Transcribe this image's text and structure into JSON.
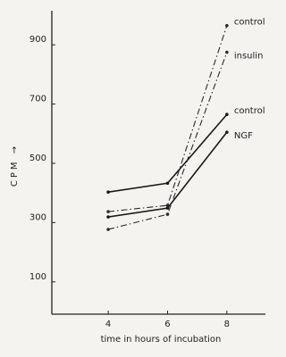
{
  "chart_data": {
    "type": "line",
    "x_label": "time in hours of incubation",
    "y_label": "CPM →",
    "x": [
      4,
      6,
      8
    ],
    "series": [
      {
        "name": "control",
        "color": "#2a2a2a",
        "dash": "dashdot",
        "values": [
          337,
          358,
          965
        ]
      },
      {
        "name": "insulin",
        "color": "#2a2a2a",
        "dash": "dashdot",
        "values": [
          277,
          328,
          875
        ]
      },
      {
        "name": "control",
        "color": "#1a1a1a",
        "dash": "solid",
        "values": [
          403,
          433,
          665
        ]
      },
      {
        "name": "NGF",
        "color": "#1a1a1a",
        "dash": "solid",
        "values": [
          319,
          349,
          605
        ]
      }
    ],
    "xlim": [
      2.1,
      9.3
    ],
    "xticks": [
      4,
      6,
      8
    ],
    "ylim": [
      0,
      1000
    ],
    "yticks": [
      100,
      300,
      500,
      700,
      900
    ]
  }
}
